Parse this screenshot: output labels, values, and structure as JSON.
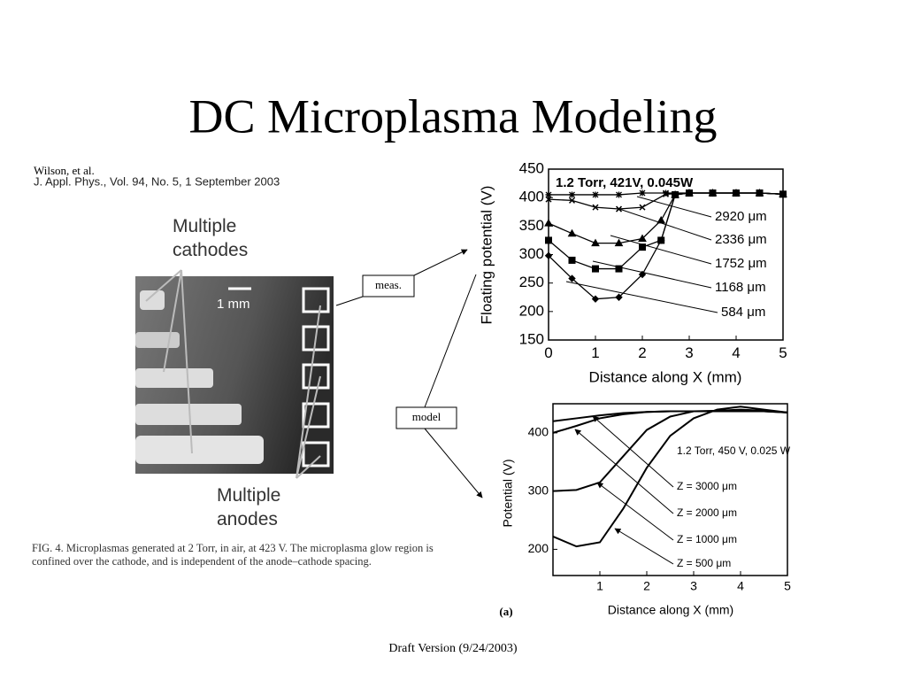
{
  "title": "DC Microplasma Modeling",
  "citation": {
    "authors": "Wilson, et al.",
    "journal": "J. Appl. Phys., Vol. 94, No. 5, 1 September 2003"
  },
  "figure": {
    "label_cathodes": "Multiple cathodes",
    "scale": "1 mm",
    "label_anodes": "Multiple anodes",
    "caption": "FIG. 4. Microplasmas generated at 2 Torr, in air, at 423 V. The microplasma glow region is confined over the cathode, and is independent of the anode–cathode spacing."
  },
  "callouts": {
    "measured": "meas.",
    "model": "model"
  },
  "footer": "Draft Version (9/24/2003)",
  "chart_data": [
    {
      "type": "line",
      "annotation": "1.2 Torr, 421V, 0.045W",
      "xlabel": "Distance along X (mm)",
      "ylabel": "Floating potential (V)",
      "xlim": [
        0,
        5
      ],
      "ylim": [
        150,
        450
      ],
      "xticks": [
        0,
        1,
        2,
        3,
        4,
        5
      ],
      "yticks": [
        150,
        200,
        250,
        300,
        350,
        400,
        450
      ],
      "series": [
        {
          "name": "2920 μm",
          "color": "#000",
          "marker": "star",
          "x": [
            0,
            0.5,
            1,
            1.5,
            2,
            2.5,
            3,
            3.5,
            4,
            4.5,
            5
          ],
          "values": [
            405,
            405,
            405,
            405,
            408,
            408,
            408,
            408,
            408,
            408,
            406
          ]
        },
        {
          "name": "2336 μm",
          "color": "#000",
          "marker": "x",
          "x": [
            0,
            0.5,
            1,
            1.5,
            2,
            2.5,
            3,
            3.5,
            4,
            4.5,
            5
          ],
          "values": [
            397,
            395,
            383,
            380,
            383,
            406,
            408,
            408,
            408,
            408,
            406
          ]
        },
        {
          "name": "1752 μm",
          "color": "#000",
          "marker": "triangle",
          "x": [
            0,
            0.5,
            1,
            1.5,
            2,
            2.4,
            2.7,
            3,
            3.5,
            4,
            4.5,
            5
          ],
          "values": [
            355,
            337,
            320,
            320,
            328,
            360,
            405,
            408,
            408,
            408,
            408,
            406
          ]
        },
        {
          "name": "1168 μm",
          "color": "#000",
          "marker": "square",
          "x": [
            0,
            0.5,
            1,
            1.5,
            2,
            2.4,
            2.7,
            3,
            3.5,
            4,
            4.5,
            5
          ],
          "values": [
            325,
            290,
            275,
            275,
            313,
            325,
            405,
            408,
            408,
            408,
            408,
            406
          ]
        },
        {
          "name": "584 μm",
          "color": "#000",
          "marker": "diamond",
          "x": [
            0,
            0.5,
            1,
            1.5,
            2,
            2.4,
            2.7,
            3,
            3.5,
            4,
            4.5,
            5
          ],
          "values": [
            298,
            258,
            222,
            225,
            265,
            325,
            405,
            408,
            408,
            408,
            408,
            406
          ]
        }
      ]
    },
    {
      "type": "line",
      "annotation": "1.2 Torr, 450 V, 0.025 W",
      "panel": "(a)",
      "xlabel": "Distance along X (mm)",
      "ylabel": "Potential (V)",
      "xlim": [
        0,
        5
      ],
      "ylim": [
        155,
        450
      ],
      "xticks": [
        1,
        2,
        3,
        4,
        5
      ],
      "yticks": [
        200,
        300,
        400
      ],
      "series": [
        {
          "name": "Z = 3000 μm",
          "color": "#000",
          "x": [
            0,
            0.5,
            1,
            1.5,
            2,
            2.5,
            3,
            3.5,
            4,
            4.5,
            5
          ],
          "values": [
            420,
            425,
            430,
            434,
            436,
            437,
            437,
            437,
            437,
            437,
            435
          ]
        },
        {
          "name": "Z = 2000 μm",
          "color": "#000",
          "x": [
            0,
            0.5,
            1,
            1.5,
            2,
            2.5,
            3,
            3.5,
            4,
            4.5,
            5
          ],
          "values": [
            400,
            412,
            425,
            432,
            436,
            437,
            437,
            437,
            437,
            437,
            435
          ]
        },
        {
          "name": "Z = 1000 μm",
          "color": "#000",
          "x": [
            0,
            0.5,
            1,
            1.5,
            2,
            2.5,
            3,
            3.5,
            4,
            4.5,
            5
          ],
          "values": [
            300,
            302,
            315,
            360,
            405,
            428,
            437,
            438,
            440,
            438,
            435
          ]
        },
        {
          "name": "Z = 500 μm",
          "color": "#000",
          "x": [
            0,
            0.5,
            1,
            1.5,
            2,
            2.5,
            3,
            3.5,
            4,
            4.5,
            5
          ],
          "values": [
            222,
            205,
            212,
            270,
            340,
            395,
            425,
            440,
            445,
            440,
            435
          ]
        }
      ]
    }
  ]
}
